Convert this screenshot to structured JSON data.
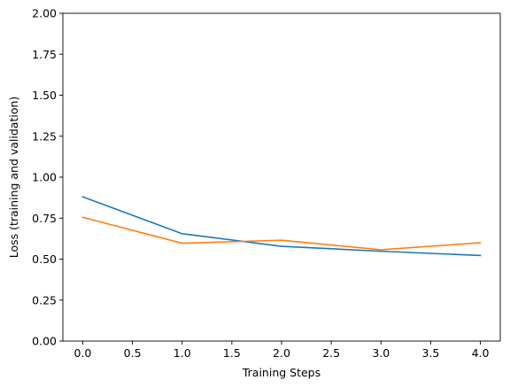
{
  "chart_data": {
    "type": "line",
    "title": "",
    "xlabel": "Training Steps",
    "ylabel": "Loss (training and validation)",
    "xlim": [
      -0.2,
      4.2
    ],
    "ylim": [
      0,
      2.0
    ],
    "x_ticks": [
      0.0,
      0.5,
      1.0,
      1.5,
      2.0,
      2.5,
      3.0,
      3.5,
      4.0
    ],
    "x_tick_labels": [
      "0.0",
      "0.5",
      "1.0",
      "1.5",
      "2.0",
      "2.5",
      "3.0",
      "3.5",
      "4.0"
    ],
    "y_ticks": [
      0.0,
      0.25,
      0.5,
      0.75,
      1.0,
      1.25,
      1.5,
      1.75,
      2.0
    ],
    "y_tick_labels": [
      "0.00",
      "0.25",
      "0.50",
      "0.75",
      "1.00",
      "1.25",
      "1.50",
      "1.75",
      "2.00"
    ],
    "grid": false,
    "legend": "none",
    "x": [
      0,
      1,
      2,
      3,
      4
    ],
    "series": [
      {
        "color": "#1f77b4",
        "values": [
          0.88,
          0.655,
          0.578,
          0.548,
          0.522
        ]
      },
      {
        "color": "#ff7f0e",
        "values": [
          0.755,
          0.597,
          0.615,
          0.557,
          0.6
        ]
      }
    ]
  }
}
